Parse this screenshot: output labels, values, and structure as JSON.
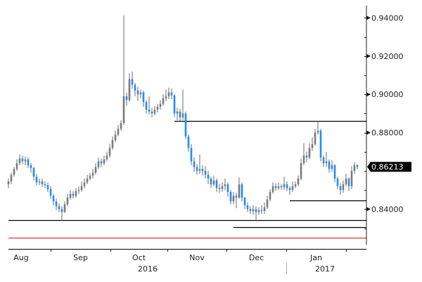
{
  "chart_data": {
    "type": "candlestick",
    "y_axis": {
      "position": "right",
      "ylim": [
        0.821,
        0.946
      ],
      "ticks": [
        0.94,
        0.92,
        0.9,
        0.88,
        0.84
      ],
      "tick_labels": [
        "0.94000",
        "0.92000",
        "0.90000",
        "0.88000",
        "0.84000"
      ]
    },
    "x_axis": {
      "months": [
        {
          "label": "Aug",
          "start_index": -6
        },
        {
          "label": "Sep",
          "start_index": 15
        },
        {
          "label": "Oct",
          "start_index": 36.25
        },
        {
          "label": "Nov",
          "start_index": 56.5
        },
        {
          "label": "Dec",
          "start_index": 77.5
        },
        {
          "label": "Jan",
          "start_index": 98.75
        },
        {
          "label": "",
          "start_index": 120
        }
      ],
      "years": [
        {
          "label": "2016",
          "center_index": 49.5
        },
        {
          "label": "2017",
          "center_index": 112.5
        }
      ],
      "year_boundary_index": 98.75
    },
    "last_price": {
      "value": 0.86213,
      "label": "0.86213"
    },
    "colors": {
      "up": "#7a7a7a",
      "down": "#1e8cff",
      "wick": "#6e6e6e",
      "last_price_bg": "#000000",
      "red_line": "#e8312f"
    },
    "grid": false,
    "levels": [
      {
        "value": 0.8861,
        "from_index": 59,
        "color": "#000000"
      },
      {
        "value": 0.8446,
        "from_index": 100,
        "color": "#000000"
      },
      {
        "value": 0.8343,
        "from_index": 0,
        "color": "#000000"
      },
      {
        "value": 0.8306,
        "from_index": 80,
        "color": "#000000"
      },
      {
        "value": 0.8251,
        "from_index": 0,
        "color": "#e8312f"
      }
    ],
    "open": [
      0.853,
      0.8545,
      0.858,
      0.861,
      0.864,
      0.8665,
      0.865,
      0.866,
      0.863,
      0.8615,
      0.857,
      0.854,
      0.8545,
      0.853,
      0.8525,
      0.8505,
      0.847,
      0.844,
      0.8415,
      0.84,
      0.8385,
      0.8425,
      0.846,
      0.848,
      0.847,
      0.8495,
      0.85,
      0.852,
      0.854,
      0.856,
      0.8575,
      0.859,
      0.862,
      0.865,
      0.864,
      0.866,
      0.868,
      0.872,
      0.876,
      0.879,
      0.882,
      0.885,
      0.899,
      0.897,
      0.908,
      0.905,
      0.902,
      0.9,
      0.901,
      0.896,
      0.892,
      0.891,
      0.89,
      0.892,
      0.8935,
      0.895,
      0.898,
      0.899,
      0.901,
      0.8995,
      0.89,
      0.891,
      0.888,
      0.89,
      0.878,
      0.872,
      0.865,
      0.862,
      0.86,
      0.861,
      0.86,
      0.858,
      0.856,
      0.853,
      0.855,
      0.851,
      0.8505,
      0.852,
      0.853,
      0.849,
      0.844,
      0.847,
      0.846,
      0.853,
      0.846,
      0.842,
      0.84,
      0.839,
      0.84,
      0.8385,
      0.8395,
      0.839,
      0.841,
      0.845,
      0.849,
      0.852,
      0.851,
      0.852,
      0.8515,
      0.853,
      0.851,
      0.85,
      0.852,
      0.853,
      0.856,
      0.864,
      0.868,
      0.867,
      0.872,
      0.874,
      0.88,
      0.881,
      0.867,
      0.864,
      0.865,
      0.861,
      0.863,
      0.856,
      0.852,
      0.85,
      0.853,
      0.856,
      0.852,
      0.86,
      0.863
    ],
    "high": [
      0.856,
      0.859,
      0.862,
      0.866,
      0.8685,
      0.868,
      0.8675,
      0.867,
      0.864,
      0.862,
      0.8585,
      0.856,
      0.856,
      0.8545,
      0.854,
      0.852,
      0.848,
      0.8455,
      0.843,
      0.8415,
      0.844,
      0.848,
      0.85,
      0.8495,
      0.851,
      0.852,
      0.8545,
      0.856,
      0.858,
      0.859,
      0.861,
      0.864,
      0.867,
      0.8665,
      0.868,
      0.87,
      0.874,
      0.878,
      0.881,
      0.884,
      0.8865,
      0.9415,
      0.901,
      0.911,
      0.912,
      0.906,
      0.904,
      0.9025,
      0.902,
      0.897,
      0.899,
      0.893,
      0.894,
      0.895,
      0.897,
      0.9,
      0.9025,
      0.9035,
      0.903,
      0.9,
      0.893,
      0.8925,
      0.9025,
      0.891,
      0.879,
      0.874,
      0.867,
      0.8635,
      0.8685,
      0.863,
      0.8625,
      0.86,
      0.857,
      0.8575,
      0.856,
      0.853,
      0.854,
      0.856,
      0.854,
      0.85,
      0.849,
      0.8485,
      0.8565,
      0.854,
      0.8465,
      0.8435,
      0.8415,
      0.842,
      0.8415,
      0.841,
      0.842,
      0.8435,
      0.847,
      0.8505,
      0.854,
      0.8535,
      0.854,
      0.853,
      0.857,
      0.8545,
      0.852,
      0.8545,
      0.8545,
      0.8575,
      0.8665,
      0.8745,
      0.87,
      0.8745,
      0.8775,
      0.882,
      0.886,
      0.882,
      0.868,
      0.87,
      0.866,
      0.8655,
      0.8635,
      0.857,
      0.8535,
      0.855,
      0.8585,
      0.8565,
      0.8625,
      0.8645,
      0.8635
    ],
    "low": [
      0.851,
      0.853,
      0.857,
      0.86,
      0.863,
      0.8635,
      0.863,
      0.8615,
      0.859,
      0.855,
      0.8525,
      0.8525,
      0.8515,
      0.851,
      0.849,
      0.8455,
      0.842,
      0.8395,
      0.8385,
      0.834,
      0.838,
      0.8415,
      0.845,
      0.8455,
      0.846,
      0.848,
      0.849,
      0.851,
      0.853,
      0.855,
      0.856,
      0.858,
      0.861,
      0.862,
      0.863,
      0.865,
      0.867,
      0.871,
      0.875,
      0.878,
      0.881,
      0.884,
      0.894,
      0.896,
      0.903,
      0.899,
      0.8965,
      0.898,
      0.8935,
      0.89,
      0.8895,
      0.888,
      0.889,
      0.8905,
      0.892,
      0.894,
      0.8965,
      0.8975,
      0.8975,
      0.888,
      0.8865,
      0.886,
      0.8865,
      0.8765,
      0.87,
      0.863,
      0.8595,
      0.858,
      0.8585,
      0.8575,
      0.856,
      0.853,
      0.851,
      0.852,
      0.849,
      0.8485,
      0.849,
      0.85,
      0.8465,
      0.8425,
      0.8425,
      0.8405,
      0.8455,
      0.844,
      0.84,
      0.8385,
      0.8375,
      0.837,
      0.8335,
      0.837,
      0.8375,
      0.8375,
      0.84,
      0.844,
      0.848,
      0.8495,
      0.85,
      0.85,
      0.85,
      0.8495,
      0.8475,
      0.849,
      0.851,
      0.852,
      0.855,
      0.863,
      0.8645,
      0.866,
      0.8705,
      0.873,
      0.879,
      0.865,
      0.862,
      0.862,
      0.859,
      0.8595,
      0.854,
      0.8505,
      0.8475,
      0.8485,
      0.852,
      0.8495,
      0.8505,
      0.8585,
      0.861
    ],
    "close": [
      0.8545,
      0.858,
      0.861,
      0.864,
      0.8665,
      0.865,
      0.866,
      0.863,
      0.8615,
      0.857,
      0.854,
      0.8545,
      0.853,
      0.8525,
      0.8505,
      0.847,
      0.844,
      0.8415,
      0.84,
      0.8385,
      0.8425,
      0.846,
      0.848,
      0.847,
      0.8495,
      0.85,
      0.852,
      0.854,
      0.856,
      0.8575,
      0.859,
      0.862,
      0.865,
      0.864,
      0.866,
      0.868,
      0.872,
      0.876,
      0.879,
      0.882,
      0.885,
      0.899,
      0.897,
      0.908,
      0.905,
      0.902,
      0.9,
      0.901,
      0.896,
      0.892,
      0.891,
      0.89,
      0.892,
      0.8935,
      0.895,
      0.898,
      0.899,
      0.901,
      0.8995,
      0.89,
      0.891,
      0.888,
      0.89,
      0.878,
      0.872,
      0.865,
      0.862,
      0.86,
      0.861,
      0.86,
      0.858,
      0.856,
      0.853,
      0.855,
      0.851,
      0.8505,
      0.852,
      0.853,
      0.849,
      0.844,
      0.847,
      0.846,
      0.853,
      0.846,
      0.842,
      0.84,
      0.839,
      0.84,
      0.8385,
      0.8395,
      0.839,
      0.841,
      0.845,
      0.849,
      0.852,
      0.851,
      0.852,
      0.8515,
      0.853,
      0.851,
      0.85,
      0.852,
      0.853,
      0.856,
      0.864,
      0.868,
      0.867,
      0.872,
      0.874,
      0.88,
      0.881,
      0.867,
      0.864,
      0.865,
      0.861,
      0.863,
      0.856,
      0.852,
      0.85,
      0.853,
      0.856,
      0.852,
      0.86,
      0.863,
      0.86213
    ]
  }
}
